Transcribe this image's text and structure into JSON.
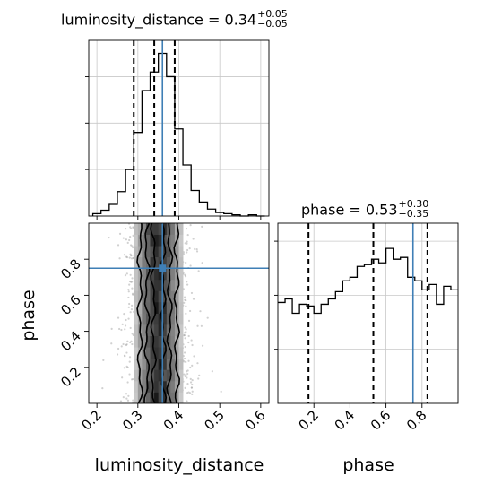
{
  "titles": {
    "lum": {
      "name": "luminosity_distance",
      "value": "0.34",
      "plus": "+0.05",
      "minus": "−0.05"
    },
    "phase": {
      "name": "phase",
      "value": "0.53",
      "plus": "+0.30",
      "minus": "−0.35"
    }
  },
  "labels": {
    "xlabel_left": "luminosity_distance",
    "xlabel_right": "phase",
    "ylabel": "phase"
  },
  "colors": {
    "truth": "#3f7fb6",
    "hist": "#000000",
    "grid": "#c8c8c8",
    "scatter": "#9a9a9a"
  },
  "chart_data": [
    {
      "type": "histogram",
      "variable": "luminosity_distance",
      "xlim": [
        0.18,
        0.62
      ],
      "xticks": [
        "0.2",
        "0.3",
        "0.4",
        "0.5",
        "0.6"
      ],
      "bin_edges": [
        0.19,
        0.21,
        0.23,
        0.25,
        0.27,
        0.29,
        0.31,
        0.33,
        0.35,
        0.37,
        0.39,
        0.41,
        0.43,
        0.45,
        0.47,
        0.49,
        0.51,
        0.53,
        0.55,
        0.57,
        0.59,
        0.61
      ],
      "counts": [
        2,
        5,
        10,
        21,
        40,
        72,
        108,
        124,
        140,
        120,
        75,
        44,
        22,
        12,
        6,
        3,
        2,
        1,
        0,
        1,
        0
      ],
      "quantiles": [
        0.29,
        0.34,
        0.39
      ],
      "truth": 0.36,
      "grid": true
    },
    {
      "type": "histogram",
      "variable": "phase",
      "xlim": [
        0.0,
        1.0
      ],
      "xticks": [
        "0.2",
        "0.4",
        "0.6",
        "0.8"
      ],
      "bin_edges": [
        0.0,
        0.04,
        0.08,
        0.12,
        0.16,
        0.2,
        0.24,
        0.28,
        0.32,
        0.36,
        0.4,
        0.44,
        0.48,
        0.52,
        0.56,
        0.6,
        0.64,
        0.68,
        0.72,
        0.76,
        0.8,
        0.84,
        0.88,
        0.92,
        0.96,
        1.0
      ],
      "counts": [
        56,
        58,
        50,
        55,
        54,
        50,
        55,
        58,
        62,
        68,
        70,
        76,
        77,
        80,
        78,
        86,
        80,
        81,
        70,
        68,
        63,
        66,
        55,
        65,
        63
      ],
      "quantiles": [
        0.17,
        0.53,
        0.83
      ],
      "truth": 0.75,
      "grid": true
    },
    {
      "type": "heatmap",
      "variables": [
        "luminosity_distance",
        "phase"
      ],
      "xlim": [
        0.18,
        0.62
      ],
      "ylim": [
        0.0,
        1.0
      ],
      "xticks": [
        "0.2",
        "0.3",
        "0.4",
        "0.5",
        "0.6"
      ],
      "yticks": [
        "0.2",
        "0.4",
        "0.6",
        "0.8"
      ],
      "truth": [
        0.36,
        0.75
      ],
      "density_center_x": 0.35,
      "density_sigma_x": 0.035,
      "contour_x_halfwidths": [
        0.012,
        0.028,
        0.045
      ],
      "grid": true
    }
  ]
}
